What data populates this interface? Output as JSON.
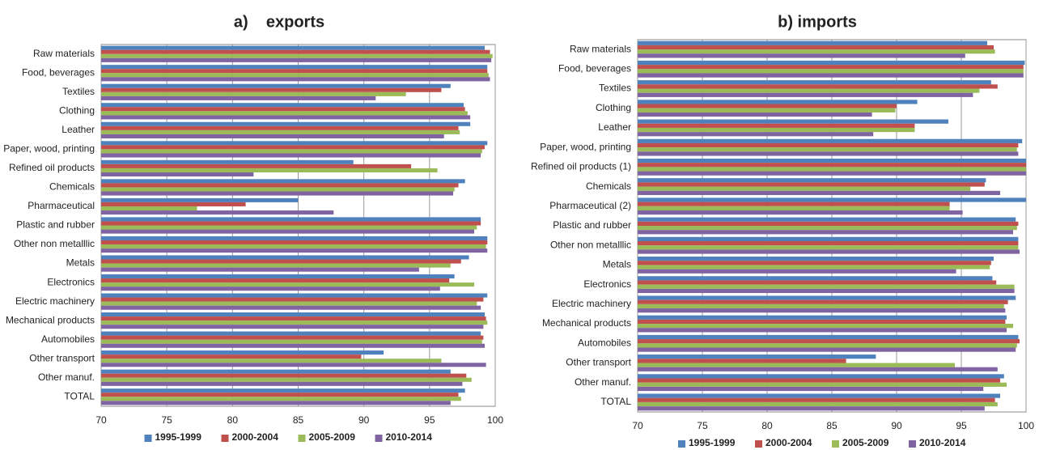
{
  "chart_data": [
    {
      "type": "bar",
      "orientation": "horizontal",
      "title": "a)    exports",
      "categories": [
        "Raw materials",
        "Food, beverages",
        "Textiles",
        "Clothing",
        "Leather",
        "Paper, wood, printing",
        "Refined oil products",
        "Chemicals",
        "Pharmaceutical",
        "Plastic and rubber",
        "Other non metalllic",
        "Metals",
        "Electronics",
        "Electric machinery",
        "Mechanical products",
        "Automobiles",
        "Other transport",
        "Other manuf.",
        "TOTAL"
      ],
      "series": [
        {
          "name": "1995-1999",
          "color": "#4f81bd",
          "values": [
            99.2,
            99.4,
            96.6,
            97.6,
            98.1,
            99.4,
            89.2,
            97.7,
            85.0,
            98.9,
            99.4,
            98.0,
            96.9,
            99.4,
            99.2,
            98.9,
            91.5,
            96.6,
            97.7
          ]
        },
        {
          "name": "2000-2004",
          "color": "#c0504d",
          "values": [
            99.6,
            99.4,
            95.9,
            97.7,
            97.2,
            99.2,
            93.6,
            97.2,
            81.0,
            98.9,
            99.4,
            97.4,
            96.5,
            99.1,
            99.3,
            99.1,
            89.8,
            97.8,
            97.2
          ]
        },
        {
          "name": "2005-2009",
          "color": "#9bbb59",
          "values": [
            99.8,
            99.5,
            93.2,
            97.9,
            97.3,
            99.0,
            95.6,
            96.9,
            77.3,
            98.6,
            99.3,
            96.6,
            98.4,
            98.6,
            99.4,
            99.0,
            95.9,
            98.2,
            97.4
          ]
        },
        {
          "name": "2010-2014",
          "color": "#8064a2",
          "values": [
            99.7,
            99.6,
            90.9,
            98.1,
            96.1,
            98.9,
            81.6,
            96.8,
            87.7,
            98.4,
            99.4,
            94.2,
            95.8,
            98.9,
            99.1,
            99.2,
            99.3,
            97.5,
            96.6
          ]
        }
      ],
      "xlim": [
        70,
        100
      ],
      "xticks": [
        70,
        75,
        80,
        85,
        90,
        95,
        100
      ],
      "grid": true,
      "legend": "bottom"
    },
    {
      "type": "bar",
      "orientation": "horizontal",
      "title": "b) imports",
      "categories": [
        "Raw materials",
        "Food, beverages",
        "Textiles",
        "Clothing",
        "Leather",
        "Paper, wood, printing",
        "Refined oil products (1)",
        "Chemicals",
        "Pharmaceutical (2)",
        "Plastic and rubber",
        "Other non metalllic",
        "Metals",
        "Electronics",
        "Electric machinery",
        "Mechanical products",
        "Automobiles",
        "Other transport",
        "Other manuf.",
        "TOTAL"
      ],
      "series": [
        {
          "name": "1995-1999",
          "color": "#4f81bd",
          "values": [
            97.0,
            99.9,
            97.3,
            91.6,
            94.0,
            99.7,
            100,
            96.9,
            100,
            99.2,
            99.4,
            97.5,
            97.4,
            99.2,
            98.5,
            99.4,
            88.4,
            98.3,
            98.0
          ]
        },
        {
          "name": "2000-2004",
          "color": "#c0504d",
          "values": [
            97.5,
            99.8,
            97.8,
            90.0,
            91.4,
            99.4,
            100,
            96.8,
            94.1,
            99.4,
            99.4,
            97.3,
            97.7,
            98.6,
            98.4,
            99.5,
            86.1,
            98.0,
            97.6
          ]
        },
        {
          "name": "2005-2009",
          "color": "#9bbb59",
          "values": [
            97.6,
            99.8,
            96.4,
            89.9,
            91.4,
            99.3,
            100,
            95.7,
            94.1,
            99.3,
            99.4,
            97.2,
            99.1,
            98.3,
            99.0,
            99.3,
            94.5,
            98.5,
            97.8
          ]
        },
        {
          "name": "2010-2014",
          "color": "#8064a2",
          "values": [
            95.3,
            99.8,
            95.9,
            88.1,
            88.2,
            99.4,
            100,
            98.0,
            95.1,
            99.0,
            99.5,
            94.6,
            99.1,
            98.4,
            98.5,
            99.2,
            97.8,
            96.7,
            96.8
          ]
        }
      ],
      "xlim": [
        70,
        100
      ],
      "xticks": [
        70,
        75,
        80,
        85,
        90,
        95,
        100
      ],
      "grid": true,
      "legend": "bottom"
    }
  ]
}
